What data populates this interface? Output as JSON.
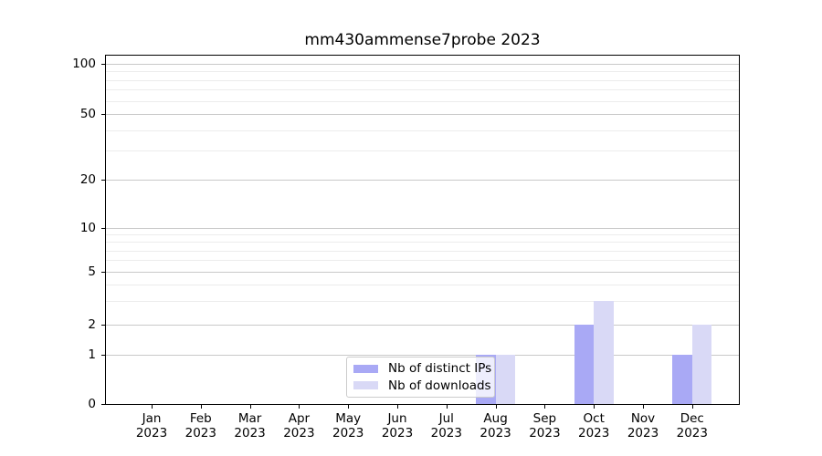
{
  "title": "mm430ammense7probe 2023",
  "chart_data": {
    "type": "bar",
    "title": "mm430ammense7probe 2023",
    "categories": [
      "Jan 2023",
      "Feb 2023",
      "Mar 2023",
      "Apr 2023",
      "May 2023",
      "Jun 2023",
      "Jul 2023",
      "Aug 2023",
      "Sep 2023",
      "Oct 2023",
      "Nov 2023",
      "Dec 2023"
    ],
    "series": [
      {
        "name": "Nb of distinct IPs",
        "color": "#a9a9f5",
        "values": [
          0,
          0,
          0,
          0,
          0,
          0,
          0,
          1,
          0,
          2,
          0,
          1
        ]
      },
      {
        "name": "Nb of downloads",
        "color": "#d9d9f6",
        "values": [
          0,
          0,
          0,
          0,
          0,
          0,
          0,
          1,
          0,
          3,
          0,
          2
        ]
      }
    ],
    "yscale": "symlog",
    "ylim": [
      0,
      100
    ],
    "yticks": [
      0,
      1,
      2,
      5,
      10,
      20,
      50,
      100
    ],
    "minor_yticks": [
      3,
      4,
      6,
      7,
      8,
      9,
      30,
      40,
      60,
      70,
      80,
      90
    ],
    "grid": "horizontal",
    "legend_position": "lower-center",
    "colors": {
      "major_grid": "#c9c9c9",
      "minor_grid": "#ececec",
      "spine": "#000000"
    }
  }
}
